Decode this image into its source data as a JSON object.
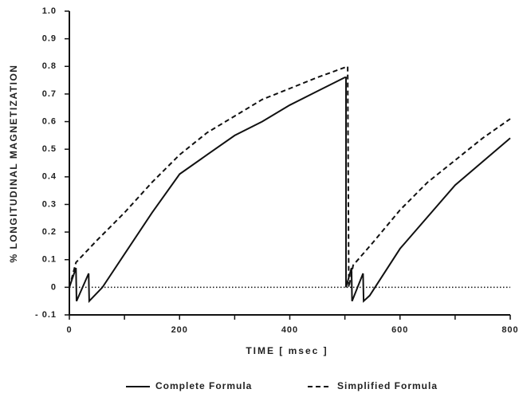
{
  "chart_data": {
    "type": "line",
    "xlabel": "TIME [ msec ]",
    "ylabel": "% LONGITUDINAL MAGNETIZATION",
    "xlim": [
      0,
      800
    ],
    "xticks": [
      0,
      200,
      400,
      600,
      800
    ],
    "xminor_ticks": [
      100,
      300,
      500,
      700
    ],
    "ylim": [
      -0.1,
      1.0
    ],
    "yticks": [
      {
        "value": -0.1,
        "label": "- 0.1"
      },
      0,
      0.1,
      0.2,
      0.3,
      0.4,
      0.5,
      0.6,
      0.7,
      0.8,
      0.9,
      {
        "value": 1.0,
        "label": "1.0"
      }
    ],
    "zero_line": true,
    "series": [
      {
        "name": "Complete Formula",
        "color": "#111111",
        "dash": false,
        "x": [
          0,
          12,
          13,
          35,
          36,
          60,
          100,
          150,
          200,
          250,
          300,
          350,
          400,
          450,
          500,
          502,
          502,
          512,
          513,
          533,
          534,
          545,
          600,
          700,
          800
        ],
        "values": [
          0,
          0.07,
          -0.05,
          0.05,
          -0.05,
          0.0,
          0.12,
          0.27,
          0.41,
          0.48,
          0.55,
          0.6,
          0.66,
          0.71,
          0.76,
          0.76,
          0,
          0.07,
          -0.05,
          0.05,
          -0.05,
          -0.03,
          0.14,
          0.37,
          0.54
        ]
      },
      {
        "name": "Simplified Formula",
        "color": "#111111",
        "dash": true,
        "x": [
          0,
          12,
          50,
          100,
          150,
          200,
          250,
          300,
          350,
          400,
          450,
          505,
          507,
          515,
          550,
          600,
          650,
          700,
          750,
          800
        ],
        "values": [
          0,
          0.09,
          0.17,
          0.27,
          0.38,
          0.48,
          0.56,
          0.62,
          0.68,
          0.72,
          0.76,
          0.8,
          0,
          0.08,
          0.16,
          0.28,
          0.38,
          0.46,
          0.54,
          0.61
        ]
      }
    ]
  }
}
